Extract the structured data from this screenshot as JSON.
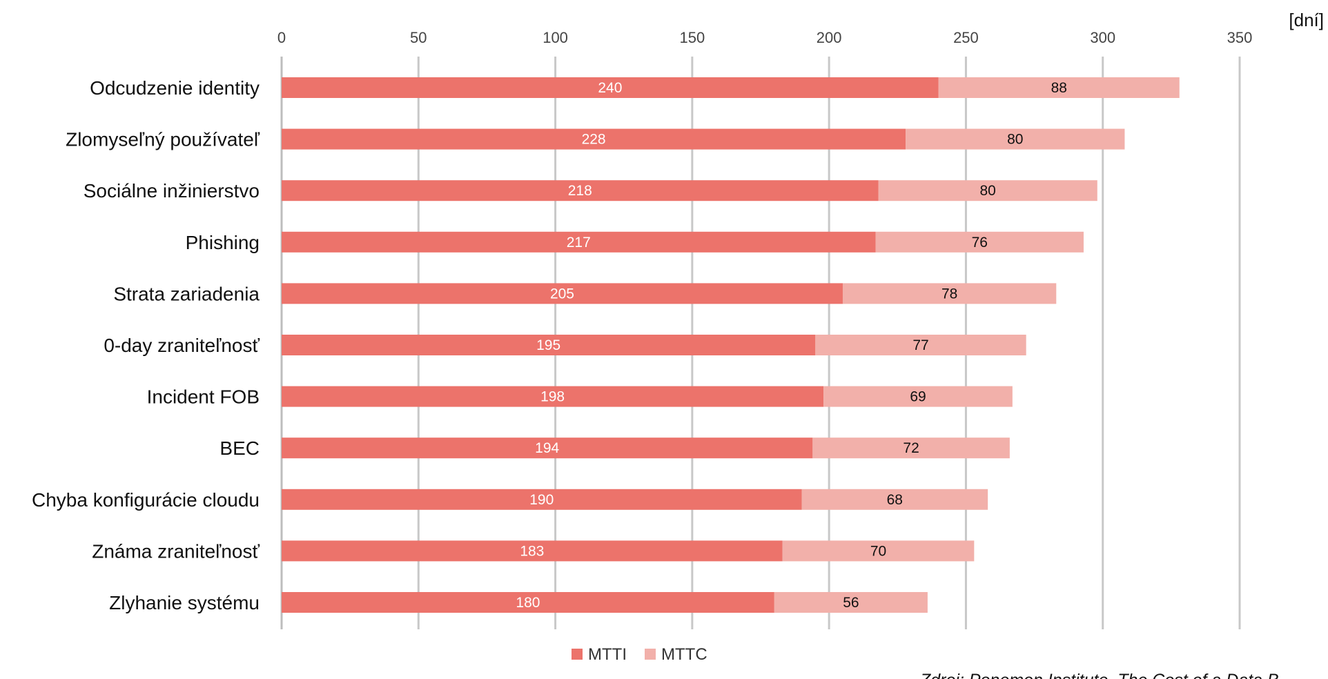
{
  "chart_data": {
    "type": "bar",
    "orientation": "horizontal",
    "stacked": true,
    "unit_label": "[dní]",
    "categories": [
      "Odcudzenie identity",
      "Zlomyseľný používateľ",
      "Sociálne inžinierstvo",
      "Phishing",
      "Strata zariadenia",
      "0-day zraniteľnosť",
      "Incident FOB",
      "BEC",
      "Chyba konfigurácie cloudu",
      "Známa zraniteľnosť",
      "Zlyhanie systému"
    ],
    "series": [
      {
        "name": "MTTI",
        "color": "#ec736b",
        "label_color": "#ffffff",
        "values": [
          240,
          228,
          218,
          217,
          205,
          195,
          198,
          194,
          190,
          183,
          180
        ]
      },
      {
        "name": "MTTC",
        "color": "#f2b0aa",
        "label_color": "#111111",
        "values": [
          88,
          80,
          80,
          76,
          78,
          77,
          69,
          72,
          68,
          70,
          56
        ]
      }
    ],
    "xlim": [
      0,
      350
    ],
    "xticks": [
      0,
      50,
      100,
      150,
      200,
      250,
      300,
      350
    ],
    "grid": true,
    "axis_position": "top",
    "legend_position": "bottom"
  },
  "source_note": "Zdroj: Ponemon Institute, The Cost of a Data B"
}
